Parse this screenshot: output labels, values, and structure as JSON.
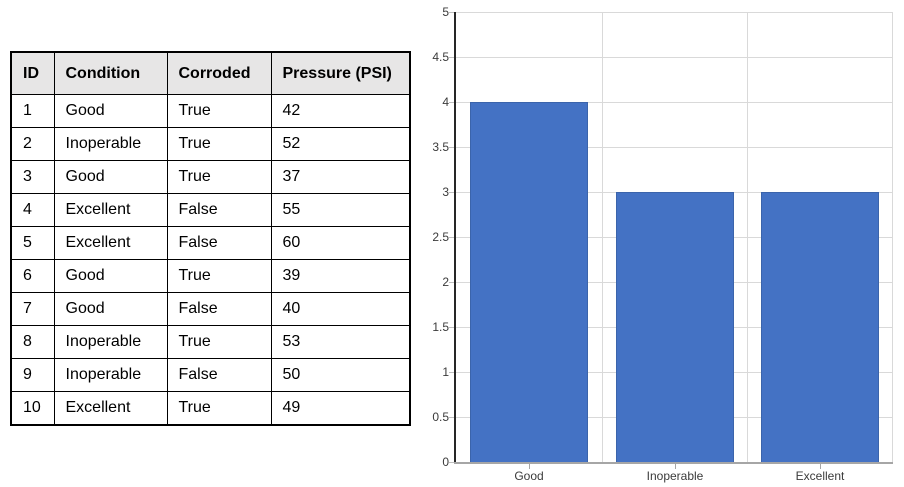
{
  "table": {
    "headers": [
      "ID",
      "Condition",
      "Corroded",
      "Pressure (PSI)"
    ],
    "rows": [
      {
        "id": "1",
        "condition": "Good",
        "corroded": "True",
        "pressure": "42"
      },
      {
        "id": "2",
        "condition": "Inoperable",
        "corroded": "True",
        "pressure": "52"
      },
      {
        "id": "3",
        "condition": "Good",
        "corroded": "True",
        "pressure": "37"
      },
      {
        "id": "4",
        "condition": "Excellent",
        "corroded": "False",
        "pressure": "55"
      },
      {
        "id": "5",
        "condition": "Excellent",
        "corroded": "False",
        "pressure": "60"
      },
      {
        "id": "6",
        "condition": "Good",
        "corroded": "True",
        "pressure": "39"
      },
      {
        "id": "7",
        "condition": "Good",
        "corroded": "False",
        "pressure": "40"
      },
      {
        "id": "8",
        "condition": "Inoperable",
        "corroded": "True",
        "pressure": "53"
      },
      {
        "id": "9",
        "condition": "Inoperable",
        "corroded": "False",
        "pressure": "50"
      },
      {
        "id": "10",
        "condition": "Excellent",
        "corroded": "True",
        "pressure": "49"
      }
    ]
  },
  "chart_data": {
    "type": "bar",
    "categories": [
      "Good",
      "Inoperable",
      "Excellent"
    ],
    "values": [
      4,
      3,
      3
    ],
    "title": "",
    "xlabel": "",
    "ylabel": "",
    "ylim": [
      0,
      5
    ],
    "y_ticks": [
      0,
      0.5,
      1,
      1.5,
      2,
      2.5,
      3,
      3.5,
      4,
      4.5,
      5
    ],
    "grid": true,
    "legend_position": "none",
    "colors": {
      "bar_fill": "#4472C4",
      "bar_border": "#3B64AB",
      "gridline": "#D9D9D9",
      "y_axis": "#262626",
      "x_axis": "#A6A6A6",
      "tick_mark": "#BFBFBF",
      "tick_label": "#3B3B3B",
      "table_header_bg": "#E7E6E6",
      "table_border": "#000000"
    }
  }
}
